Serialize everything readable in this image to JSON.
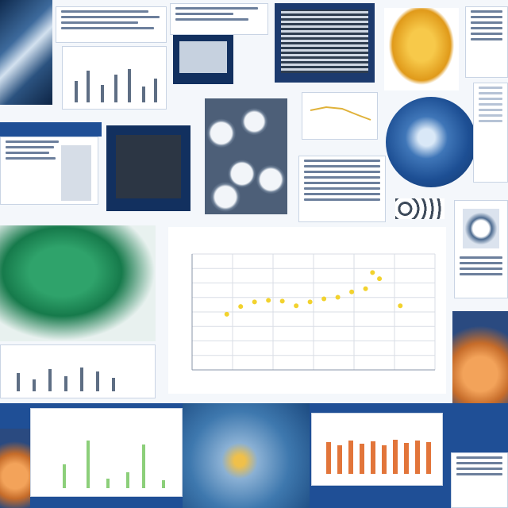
{
  "chart_data": {
    "type": "scatter",
    "title": "",
    "xlabel": "",
    "ylabel": "",
    "series": [
      {
        "color": "#f2d22e",
        "points": [
          [
            1,
            7.2
          ],
          [
            1.4,
            8.2
          ],
          [
            1.8,
            8.8
          ],
          [
            2.2,
            9.0
          ],
          [
            2.6,
            8.9
          ],
          [
            3,
            8.3
          ],
          [
            3.4,
            8.8
          ],
          [
            3.8,
            9.2
          ],
          [
            4.2,
            9.4
          ],
          [
            4.6,
            10.1
          ],
          [
            5,
            10.5
          ],
          [
            5.2,
            12.6
          ],
          [
            5.4,
            11.8
          ],
          [
            6,
            8.3
          ]
        ]
      }
    ],
    "xlim": [
      0,
      7
    ],
    "ylim": [
      0,
      15
    ],
    "grid": true
  },
  "colors": {
    "background": "#f4f7fb",
    "panel_dark": "#1c3a6e",
    "accent": "#1f4f96"
  }
}
